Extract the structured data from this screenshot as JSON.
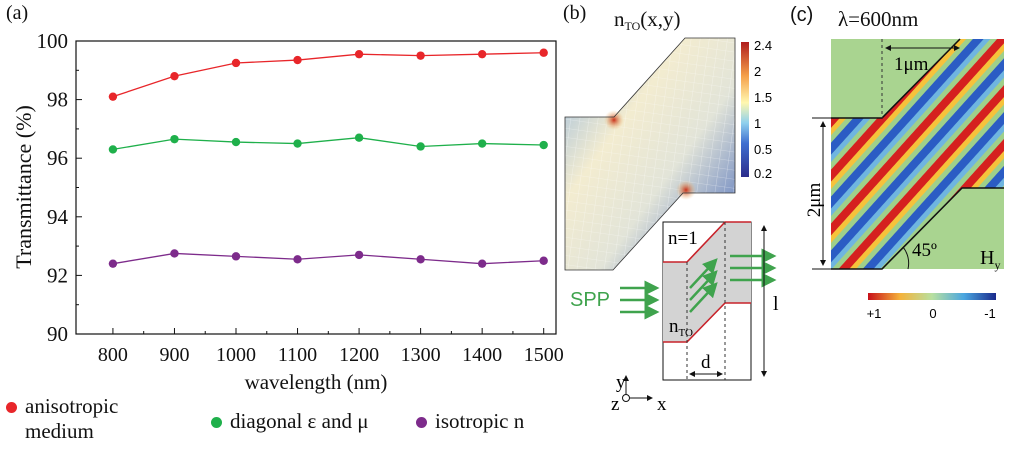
{
  "panels": {
    "a": "(a)",
    "b": "(b)",
    "c": "(c)"
  },
  "chart_data": {
    "type": "line",
    "xlabel": "wavelength  (nm)",
    "ylabel": "Transmittance (%)",
    "x": [
      800,
      900,
      1000,
      1100,
      1200,
      1300,
      1400,
      1500
    ],
    "xlim": [
      740,
      1520
    ],
    "ylim": [
      90,
      100
    ],
    "xticks": [
      "800",
      "900",
      "1000",
      "1100",
      "1200",
      "1300",
      "1400",
      "1500"
    ],
    "yticks": [
      "90",
      "92",
      "94",
      "96",
      "98",
      "100"
    ],
    "grid": false,
    "legend_placement": "bottom",
    "series": [
      {
        "name": "anisotropic medium",
        "color": "#e8262a",
        "values": [
          98.1,
          98.8,
          99.25,
          99.35,
          99.55,
          99.5,
          99.55,
          99.6
        ]
      },
      {
        "name": "diagonal ε and μ",
        "color": "#1fb04b",
        "values": [
          96.3,
          96.65,
          96.55,
          96.5,
          96.7,
          96.4,
          96.5,
          96.45
        ]
      },
      {
        "name": "isotropic n",
        "color": "#7d2b8b",
        "values": [
          92.4,
          92.75,
          92.65,
          92.55,
          92.7,
          92.55,
          92.4,
          92.5
        ]
      }
    ]
  },
  "legend": {
    "anisotropic_line1": "anisotropic",
    "anisotropic_line2": "medium",
    "diagonal": "diagonal ε and μ",
    "isotropic": "isotropic n"
  },
  "panel_b": {
    "title_n": "n",
    "title_sub": "TO",
    "title_rest": "(x,y)",
    "colorbar_ticks": [
      "2.4",
      "2",
      "1.5",
      "1",
      "0.5",
      "0.2"
    ],
    "n_eq": "n=1",
    "spp": "SPP",
    "n_to": "n",
    "n_to_sub": "TO",
    "d": "d",
    "l": "l",
    "axis_y": "y",
    "axis_z": "z",
    "axis_x": "x"
  },
  "panel_c": {
    "title": "λ=600nm",
    "len_1um": "1μm",
    "len_2um": "2μm",
    "angle": "45º",
    "field": "H",
    "field_sub": "y",
    "colorbar_ticks": [
      "+1",
      "0",
      "-1"
    ]
  }
}
